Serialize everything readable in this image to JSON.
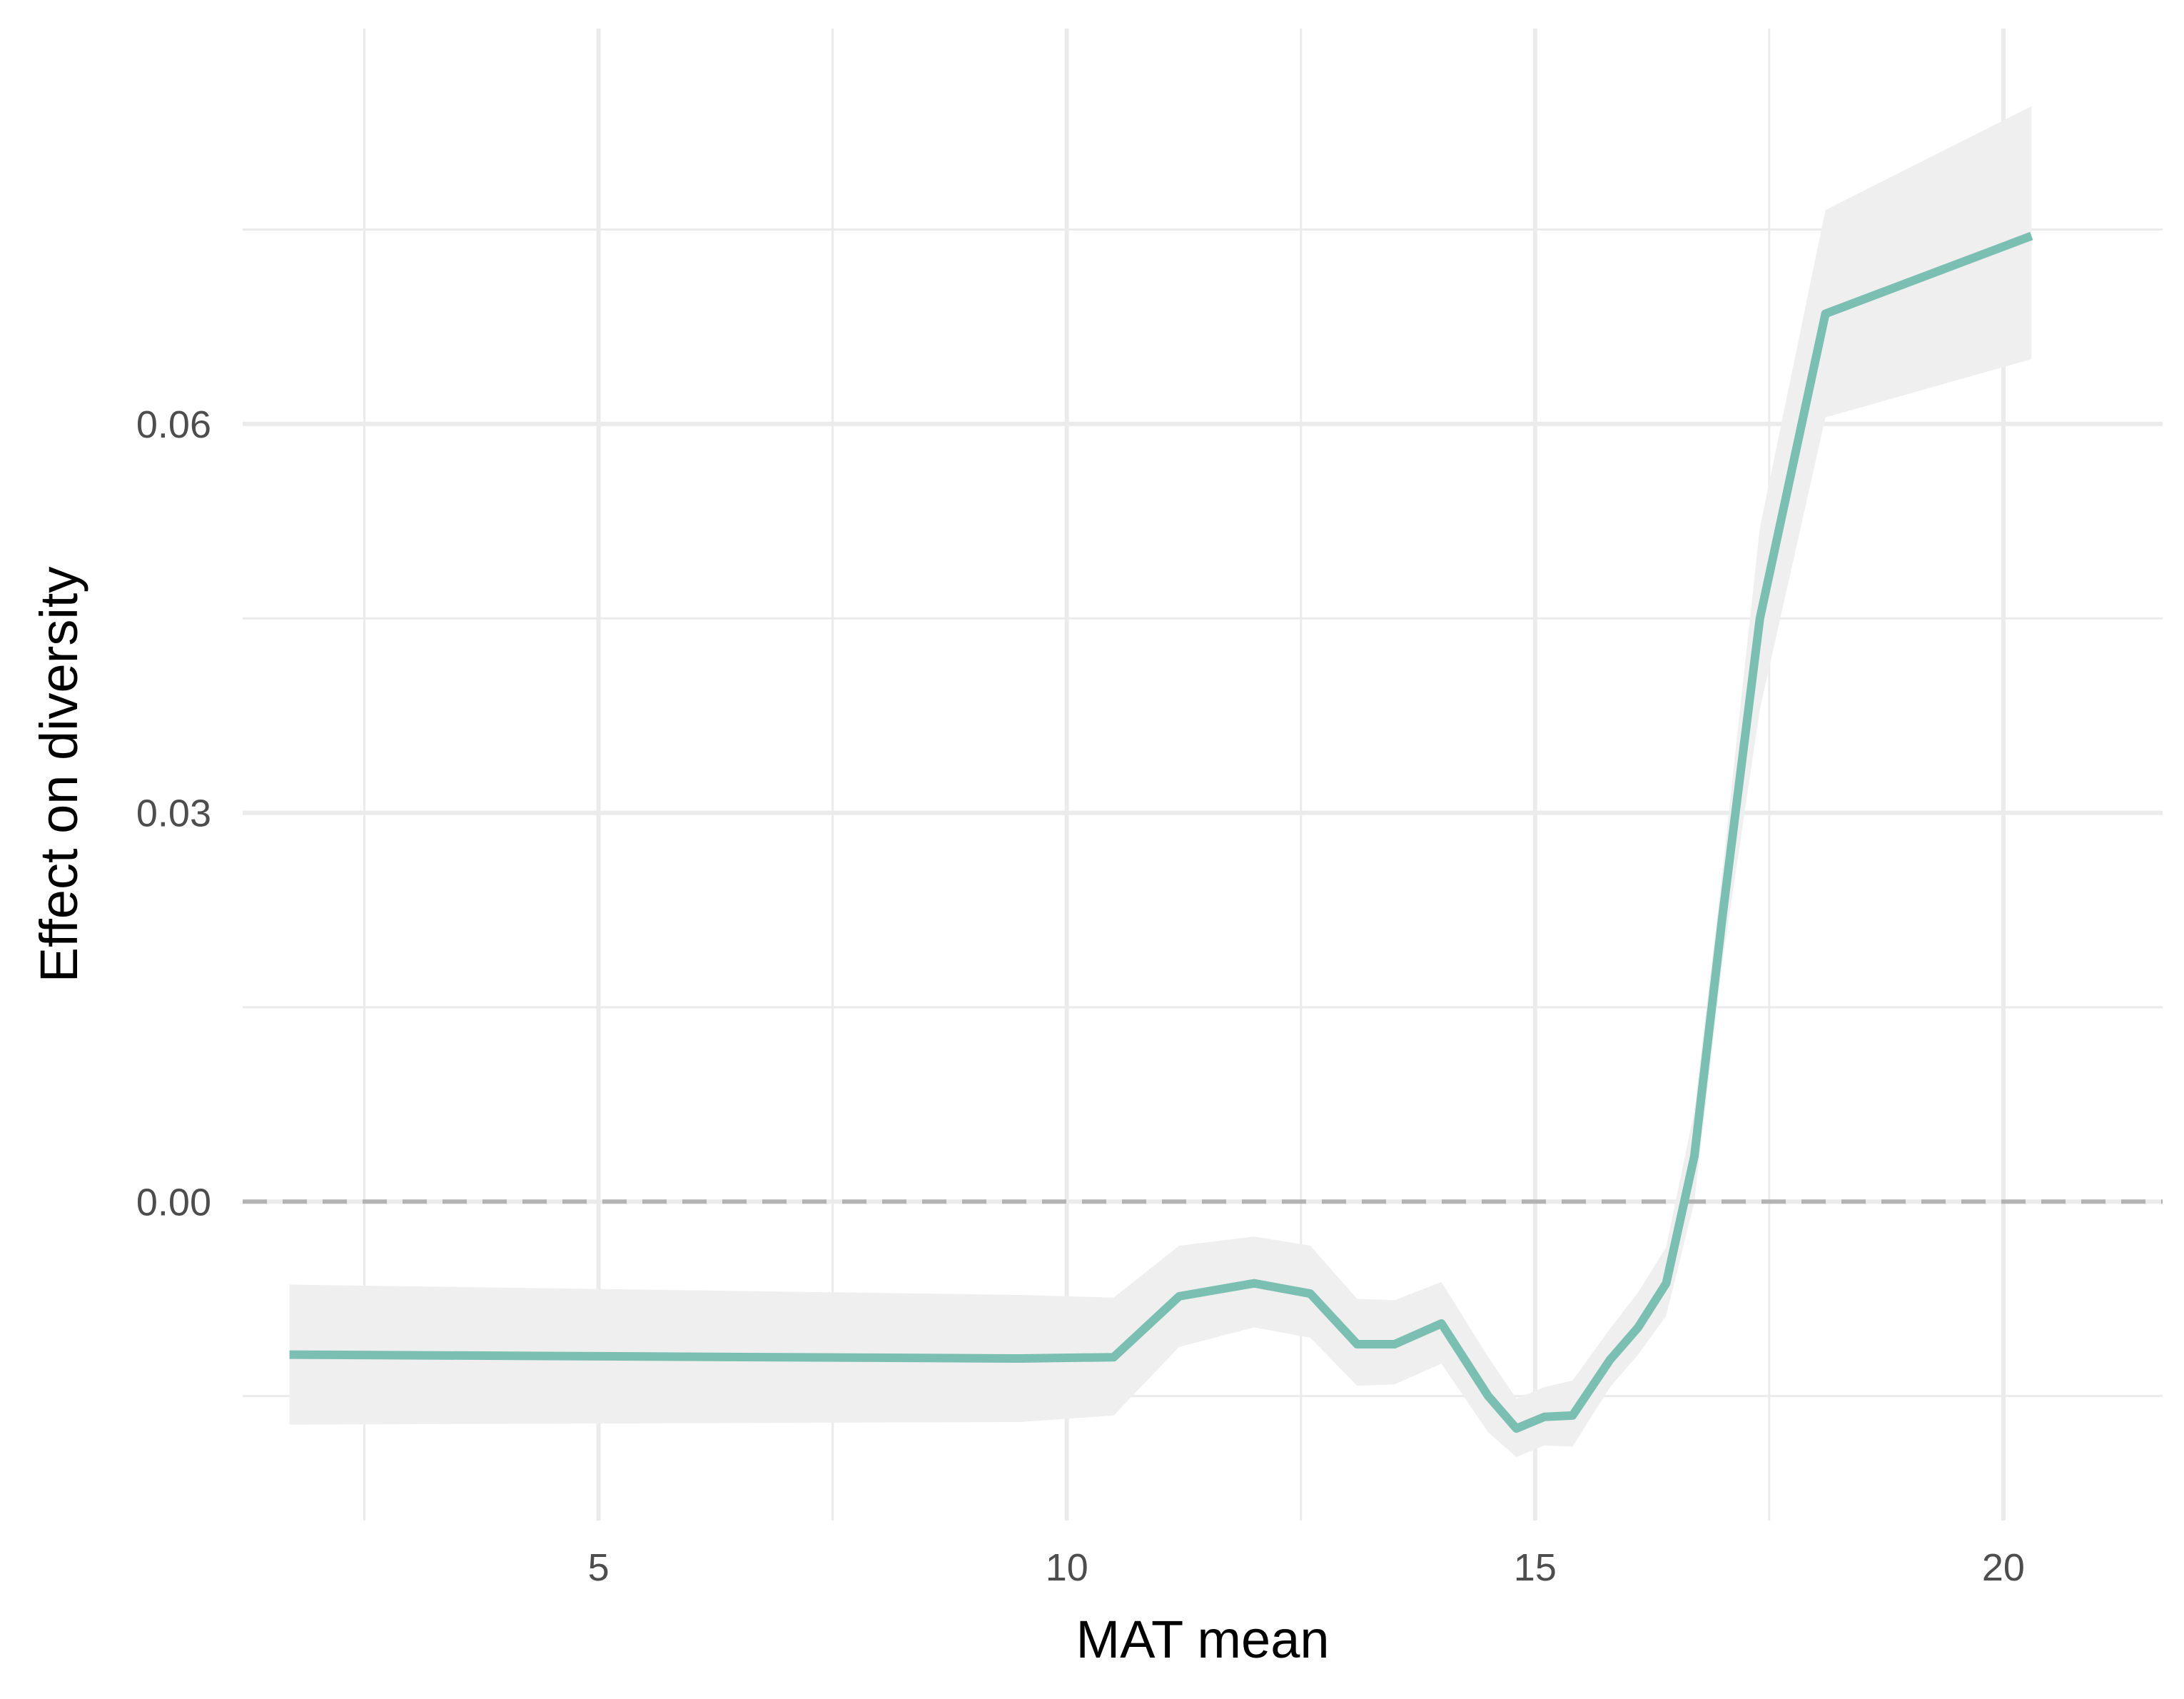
{
  "chart_data": {
    "type": "line",
    "title": "",
    "xlabel": "MAT mean",
    "ylabel": "Effect on diversity",
    "xlim": [
      1.2,
      21.7
    ],
    "ylim": [
      -0.0246,
      0.0905
    ],
    "x_ticks": [
      {
        "value": 5,
        "label": "5"
      },
      {
        "value": 10,
        "label": "10"
      },
      {
        "value": 15,
        "label": "15"
      },
      {
        "value": 20,
        "label": "20"
      }
    ],
    "x_minor_ticks": [
      2.5,
      7.5,
      12.5,
      17.5
    ],
    "y_ticks": [
      {
        "value": 0.0,
        "label": "0.00"
      },
      {
        "value": 0.03,
        "label": "0.03"
      },
      {
        "value": 0.06,
        "label": "0.06"
      }
    ],
    "y_minor_ticks": [
      -0.015,
      0.015,
      0.045,
      0.075
    ],
    "grid": true,
    "reference_line": {
      "value": 0.0,
      "style": "dashed",
      "color": "#b3b3b3"
    },
    "colors": {
      "line": "#7bbfb2",
      "ribbon": "#efefef",
      "grid": "#ebebeb"
    },
    "series": [
      {
        "x": [
          1.7,
          9.5,
          10.5,
          11.2,
          12.0,
          12.6,
          13.1,
          13.5,
          14.0,
          14.5,
          14.8,
          15.1,
          15.4,
          15.8,
          16.1,
          16.4,
          16.7,
          17.0,
          17.4,
          18.1,
          20.3
        ],
        "y": [
          -0.0118,
          -0.0121,
          -0.012,
          -0.0073,
          -0.0063,
          -0.0071,
          -0.011,
          -0.011,
          -0.0094,
          -0.015,
          -0.0175,
          -0.0166,
          -0.0165,
          -0.0122,
          -0.0097,
          -0.0063,
          0.0035,
          0.022,
          0.045,
          0.0685,
          0.0745
        ],
        "lower": [
          -0.0172,
          -0.017,
          -0.0165,
          -0.0112,
          -0.0097,
          -0.0105,
          -0.0142,
          -0.0141,
          -0.0125,
          -0.0178,
          -0.0197,
          -0.0188,
          -0.0189,
          -0.0143,
          -0.0118,
          -0.0088,
          0.0,
          0.0185,
          0.038,
          0.0605,
          0.065
        ],
        "upper": [
          -0.0064,
          -0.0072,
          -0.0074,
          -0.0034,
          -0.0027,
          -0.0034,
          -0.0075,
          -0.0076,
          -0.0062,
          -0.012,
          -0.0152,
          -0.0143,
          -0.0138,
          -0.0098,
          -0.007,
          -0.0035,
          0.007,
          0.0255,
          0.052,
          0.0765,
          0.0845
        ]
      }
    ]
  }
}
